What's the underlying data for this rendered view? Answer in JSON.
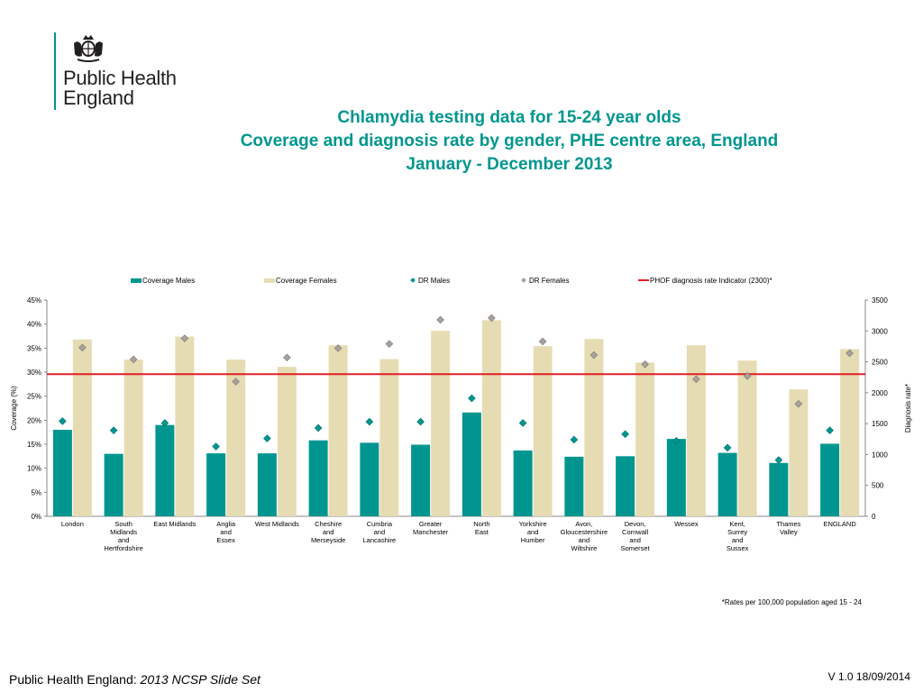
{
  "brand": {
    "logo_line1": "Public Health",
    "logo_line2": "England",
    "crest_icon": "royal-crest-icon",
    "accent": "#00968f"
  },
  "title": {
    "line1": "Chlamydia testing data for 15-24 year olds",
    "line2": "Coverage and diagnosis rate by gender, PHE centre area, England",
    "line3": "January - December  2013"
  },
  "footnote": "*Rates per 100,000 population aged 15 - 24",
  "footer": {
    "left_prefix": "Public Health England: ",
    "left_italic": "2013 NCSP Slide Set",
    "right": "V 1.0  18/09/2014"
  },
  "chart_data": {
    "type": "bar",
    "categories": [
      [
        "London"
      ],
      [
        "South",
        "Midlands",
        "and",
        "Hertfordshire"
      ],
      [
        "East Midlands"
      ],
      [
        "Anglia",
        "and",
        "Essex"
      ],
      [
        "West Midlands"
      ],
      [
        "Cheshire",
        "and",
        "Merseyside"
      ],
      [
        "Cumbria",
        "and",
        "Lancashire"
      ],
      [
        "Greater",
        "Manchester"
      ],
      [
        "North",
        "East"
      ],
      [
        "Yorkshire",
        "and",
        "Humber"
      ],
      [
        "Avon,",
        "Gloucestershire",
        "and",
        "Wiltshire"
      ],
      [
        "Devon,",
        "Cornwall",
        "and",
        "Somerset"
      ],
      [
        "Wessex"
      ],
      [
        "Kent,",
        "Surrey",
        "and",
        "Sussex"
      ],
      [
        "Thames",
        "Valley"
      ],
      [
        "ENGLAND"
      ]
    ],
    "series": [
      {
        "name": "Coverage Males",
        "kind": "bar",
        "axis": "left",
        "color": "#00968f",
        "values": [
          18.0,
          13.0,
          19.0,
          13.1,
          13.1,
          15.8,
          15.3,
          14.9,
          21.6,
          13.7,
          12.4,
          12.5,
          16.1,
          13.2,
          11.1,
          15.1
        ]
      },
      {
        "name": "Coverage Females",
        "kind": "bar",
        "axis": "left",
        "color": "#e6dcb3",
        "values": [
          36.8,
          32.6,
          37.4,
          32.6,
          31.1,
          35.6,
          32.7,
          38.6,
          40.8,
          35.4,
          36.9,
          32.0,
          35.6,
          32.4,
          26.4,
          34.8
        ]
      },
      {
        "name": "DR Males",
        "kind": "marker",
        "axis": "right",
        "color": "#00968f",
        "values": [
          1540,
          1390,
          1510,
          1130,
          1260,
          1430,
          1530,
          1530,
          1910,
          1510,
          1240,
          1330,
          1220,
          1110,
          910,
          1390
        ]
      },
      {
        "name": "DR Females",
        "kind": "marker",
        "axis": "right",
        "color": "#a8a19c",
        "values": [
          2730,
          2540,
          2880,
          2180,
          2570,
          2720,
          2790,
          3180,
          3210,
          2830,
          2610,
          2460,
          2220,
          2270,
          1820,
          2640
        ]
      },
      {
        "name": "PHOF diagnosis rate Indicator (2300)*",
        "kind": "line",
        "axis": "right",
        "color": "#e31e24",
        "value": 2300
      }
    ],
    "ylabel": "Coverage (%)",
    "y2label": "Diagnosis rate*",
    "ylim": [
      0,
      45
    ],
    "y2lim": [
      0,
      3500
    ],
    "yticks": [
      "0%",
      "5%",
      "10%",
      "15%",
      "20%",
      "25%",
      "30%",
      "35%",
      "40%",
      "45%"
    ],
    "y2ticks": [
      "0",
      "500",
      "1000",
      "1500",
      "2000",
      "2500",
      "3000",
      "3500"
    ],
    "legend": "top",
    "grid": false
  }
}
